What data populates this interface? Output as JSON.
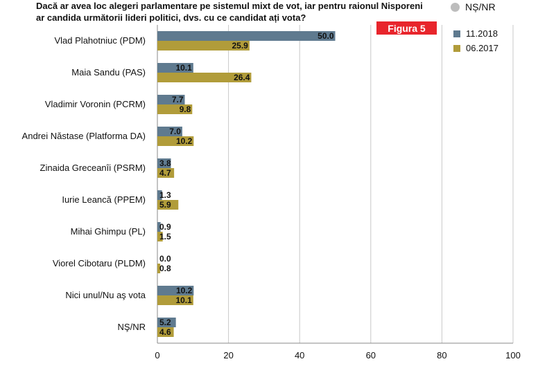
{
  "title": "Dacă ar avea loc alegeri parlamentare pe sistemul mixt de vot, iar pentru raionul Nisporeni ar candida următorii lideri politici, dvs. cu ce candidat ați vota?",
  "nsnr_label": "NȘ/NR",
  "badge": "Figura 5",
  "colors": {
    "series1": "#5f7a8f",
    "series2": "#b19c3a",
    "badge": "#e8252c",
    "nsnr_dot": "#bdbdbd"
  },
  "chart_data": {
    "type": "bar",
    "orientation": "horizontal",
    "categories": [
      "Vlad Plahotniuc (PDM)",
      "Maia Sandu (PAS)",
      "Vladimir Voronin (PCRM)",
      "Andrei Năstase (Platforma DA)",
      "Zinaida Greceanîi (PSRM)",
      "Iurie Leancă (PPEM)",
      "Mihai Ghimpu (PL)",
      "Viorel Cibotaru (PLDM)",
      "Nici unul/Nu aş vota",
      "NŞ/NR"
    ],
    "series": [
      {
        "name": "11.2018",
        "values": [
          50.0,
          10.1,
          7.7,
          7.0,
          3.8,
          1.3,
          0.9,
          0.0,
          10.2,
          5.2
        ]
      },
      {
        "name": "06.2017",
        "values": [
          25.9,
          26.4,
          9.8,
          10.2,
          4.7,
          5.9,
          1.5,
          0.8,
          10.1,
          4.6
        ]
      }
    ],
    "xlim": [
      0,
      100
    ],
    "xticks": [
      0,
      20,
      40,
      60,
      80,
      100
    ],
    "grid": true,
    "legend": "top-right"
  }
}
